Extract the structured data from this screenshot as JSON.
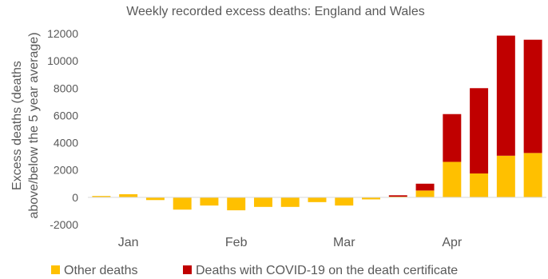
{
  "chart_data": {
    "type": "bar",
    "stacked": true,
    "title": "Weekly recorded excess deaths: England and Wales",
    "xlabel": "",
    "ylabel_lines": [
      "Excess deaths (deaths",
      "above/below the 5 year average)"
    ],
    "ylim": [
      -2000,
      12000
    ],
    "yticks": [
      -2000,
      0,
      2000,
      4000,
      6000,
      8000,
      10000,
      12000
    ],
    "grid": false,
    "legend_position": "bottom",
    "x_month_labels": [
      {
        "label": "Jan",
        "after_bar": 1
      },
      {
        "label": "Feb",
        "after_bar": 5
      },
      {
        "label": "Mar",
        "after_bar": 9
      },
      {
        "label": "Apr",
        "after_bar": 13
      }
    ],
    "series": [
      {
        "name": "Other deaths",
        "color": "#FFC000",
        "values": [
          100,
          230,
          -200,
          -900,
          -600,
          -950,
          -700,
          -700,
          -350,
          -600,
          -150,
          50,
          500,
          2600,
          1750,
          3050,
          3250
        ]
      },
      {
        "name": "Deaths with COVID-19 on the death certificate",
        "color": "#C00000",
        "values": [
          0,
          0,
          0,
          0,
          0,
          0,
          0,
          0,
          0,
          0,
          0,
          100,
          500,
          3500,
          6250,
          8800,
          8300
        ]
      }
    ]
  }
}
